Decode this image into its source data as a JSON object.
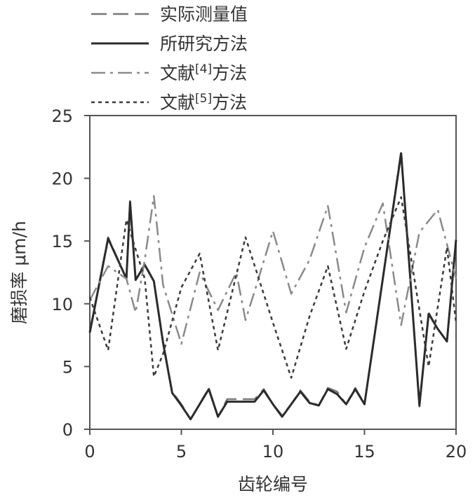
{
  "chart_data": {
    "type": "line",
    "xlabel": "齿轮编号",
    "ylabel": "磨损率 μm/h",
    "xlim": [
      0,
      20
    ],
    "ylim": [
      0,
      25
    ],
    "xticks": [
      0,
      5,
      10,
      15,
      20
    ],
    "yticks": [
      0,
      5,
      10,
      15,
      20,
      25
    ],
    "grid": false,
    "legend_position": "top-left",
    "series": [
      {
        "name": "实际测量值",
        "style": "dashed",
        "color": "#777777",
        "x": [
          0,
          1,
          2,
          2.2,
          2.5,
          3,
          3.5,
          4,
          4.5,
          5,
          5.5,
          6,
          6.5,
          7,
          7.5,
          8,
          8.5,
          9,
          9.5,
          10,
          10.5,
          11,
          11.5,
          12,
          12.5,
          13,
          13.5,
          14,
          14.5,
          15,
          16,
          17,
          17.5,
          18,
          18.5,
          19,
          19.5,
          20
        ],
        "y": [
          7.8,
          15.3,
          12.0,
          18.2,
          11.8,
          13.2,
          11.8,
          7.0,
          3.0,
          2.0,
          0.8,
          2.0,
          3.3,
          1.0,
          2.4,
          2.4,
          2.4,
          2.4,
          3.2,
          2.0,
          1.1,
          2.0,
          3.1,
          2.2,
          1.9,
          3.3,
          3.0,
          2.0,
          3.3,
          2.0,
          12.0,
          22.2,
          12.0,
          1.8,
          9.3,
          8.0,
          7.0,
          15.2
        ]
      },
      {
        "name": "所研究方法",
        "style": "solid",
        "color": "#2b2b2b",
        "x": [
          0,
          1,
          2,
          2.2,
          2.5,
          3,
          3.5,
          4,
          4.5,
          5,
          5.5,
          6,
          6.5,
          7,
          7.5,
          8,
          8.5,
          9,
          9.5,
          10,
          10.5,
          11,
          11.5,
          12,
          12.5,
          13,
          13.5,
          14,
          14.5,
          15,
          16,
          17,
          17.5,
          18,
          18.5,
          19,
          19.5,
          20
        ],
        "y": [
          7.7,
          15.2,
          12.0,
          18.1,
          11.9,
          13.1,
          11.8,
          6.9,
          2.9,
          1.9,
          0.8,
          2.0,
          3.2,
          1.0,
          2.2,
          2.2,
          2.2,
          2.2,
          3.1,
          2.0,
          1.0,
          2.0,
          3.0,
          2.1,
          1.9,
          3.2,
          2.8,
          2.0,
          3.2,
          2.0,
          12.0,
          22.0,
          12.0,
          1.9,
          9.2,
          8.0,
          7.0,
          15.1
        ]
      },
      {
        "name": "文献[4]方法",
        "style": "dashdot",
        "color": "#8a8a8a",
        "x": [
          0,
          1,
          2,
          2.5,
          3,
          3.5,
          4,
          5,
          6,
          7,
          8,
          8.5,
          9,
          10,
          11,
          12,
          13,
          14,
          15,
          16,
          17,
          18,
          19,
          20
        ],
        "y": [
          10.3,
          13.0,
          12.0,
          9.3,
          13.5,
          18.6,
          11.5,
          6.8,
          12.5,
          9.5,
          12.5,
          8.7,
          11.0,
          15.8,
          10.8,
          13.5,
          17.8,
          9.3,
          14.5,
          18.0,
          8.3,
          15.7,
          17.5,
          12.0
        ]
      },
      {
        "name": "文献[5]方法",
        "style": "dotted",
        "color": "#3a3a3a",
        "x": [
          0,
          1,
          2,
          3,
          3.5,
          4,
          5,
          6,
          7,
          8.5,
          10,
          11,
          12,
          13,
          14,
          15,
          16,
          17,
          18.5,
          19.5,
          20
        ],
        "y": [
          10.5,
          6.3,
          16.7,
          12.0,
          4.2,
          6.0,
          11.3,
          14.0,
          6.3,
          15.3,
          8.5,
          4.1,
          9.0,
          13.0,
          6.4,
          11.0,
          15.0,
          18.5,
          5.0,
          14.5,
          8.5
        ]
      }
    ]
  }
}
